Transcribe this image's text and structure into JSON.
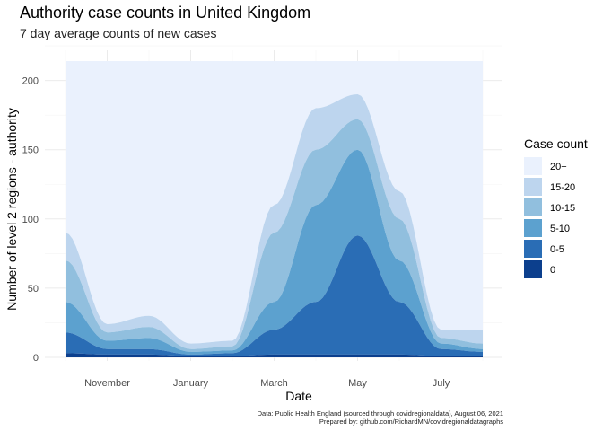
{
  "chart_data": {
    "type": "area",
    "stacked": true,
    "title": "Authority case counts in United Kingdom",
    "subtitle": "7 day average counts of new cases",
    "xlabel": "Date",
    "ylabel": "Number of level 2 regions - authority",
    "x_ticks": [
      {
        "label": "November",
        "month_offset": 1
      },
      {
        "label": "January",
        "month_offset": 3
      },
      {
        "label": "March",
        "month_offset": 5
      },
      {
        "label": "May",
        "month_offset": 7
      },
      {
        "label": "July",
        "month_offset": 9
      }
    ],
    "y_ticks": [
      0,
      50,
      100,
      150,
      200
    ],
    "ylim": [
      0,
      214
    ],
    "grid": true,
    "legend": {
      "title": "Case count",
      "position": "right"
    },
    "series_order_bottom_to_top": [
      "0",
      "0-5",
      "5-10",
      "10-15",
      "15-20",
      "20+"
    ],
    "series": [
      {
        "name": "20+",
        "color": "#eaf1fd"
      },
      {
        "name": "15-20",
        "color": "#bdd5ee"
      },
      {
        "name": "10-15",
        "color": "#91bfde"
      },
      {
        "name": "5-10",
        "color": "#5ca1cf"
      },
      {
        "name": "0-5",
        "color": "#2a6db5"
      },
      {
        "name": "0",
        "color": "#0c3f8d"
      }
    ],
    "cumulative_boundaries_monthly": {
      "months": [
        "Oct",
        "Nov",
        "Dec",
        "Jan",
        "Feb",
        "Mar",
        "Apr",
        "May",
        "Jun",
        "Jul",
        "Aug"
      ],
      "top_0": [
        3,
        2,
        2,
        1,
        1,
        2,
        2,
        2,
        2,
        1,
        1
      ],
      "top_0_5": [
        18,
        6,
        6,
        2,
        3,
        20,
        40,
        88,
        40,
        6,
        4
      ],
      "top_5_10": [
        40,
        12,
        14,
        4,
        5,
        40,
        110,
        150,
        70,
        10,
        6
      ],
      "top_10_15": [
        70,
        18,
        22,
        6,
        8,
        90,
        150,
        172,
        100,
        14,
        10
      ],
      "top_15_20": [
        90,
        24,
        30,
        10,
        12,
        110,
        180,
        190,
        120,
        20,
        20
      ],
      "top_20_plus": [
        214,
        214,
        214,
        214,
        214,
        214,
        214,
        214,
        214,
        214,
        214
      ]
    },
    "caption_lines": [
      "Data: Public Health England (sourced through covidregionaldata), August 06, 2021",
      "Prepared by: github.com/RichardMN/covidregionaldatagraphs"
    ]
  }
}
